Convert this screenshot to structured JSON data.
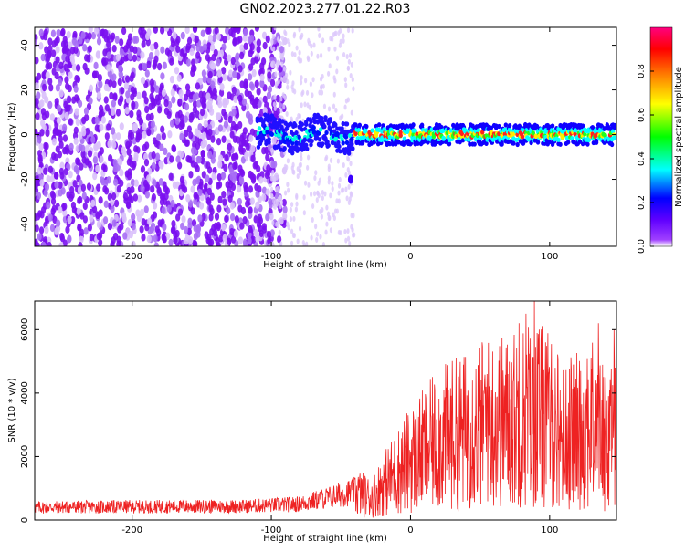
{
  "title": "GN02.2023.277.01.22.R03",
  "chart_data": [
    {
      "type": "heatmap",
      "xlabel": "Height of straight line (km)",
      "ylabel": "Frequency (Hz)",
      "xlim": [
        -270,
        148
      ],
      "ylim": [
        -50,
        48
      ],
      "xticks": [
        -200,
        -100,
        0,
        100
      ],
      "yticks": [
        -40,
        -20,
        0,
        20,
        40
      ],
      "colorbar": {
        "label": "Normalized spectral amplitude",
        "range": [
          0,
          1
        ],
        "ticks": [
          0.0,
          0.2,
          0.4,
          0.6,
          0.8
        ],
        "colormap": [
          "#ffffff",
          "#8000ff",
          "#0000ff",
          "#00ffff",
          "#00ff00",
          "#ffff00",
          "#ff8000",
          "#ff0000",
          "#ff0080"
        ]
      },
      "description_regions": [
        {
          "x": [
            -270,
            -100
          ],
          "y": [
            -50,
            48
          ],
          "amplitude": 0.05
        },
        {
          "x": [
            -100,
            -40
          ],
          "freq_center": 0,
          "amplitude": 0.25
        },
        {
          "x": [
            -40,
            148
          ],
          "freq_center": 0,
          "amplitude": 0.55
        }
      ]
    },
    {
      "type": "line",
      "xlabel": "Height of straight line (km)",
      "ylabel": "SNR (10 * v/v)",
      "xlim": [
        -270,
        148
      ],
      "ylim": [
        0,
        6900
      ],
      "xticks": [
        -200,
        -100,
        0,
        100
      ],
      "yticks": [
        0,
        2000,
        4000,
        6000
      ],
      "line_color": "#ee2222",
      "envelope_points": [
        {
          "x": -270,
          "y": 400
        },
        {
          "x": -200,
          "y": 420
        },
        {
          "x": -120,
          "y": 430
        },
        {
          "x": -80,
          "y": 500
        },
        {
          "x": -60,
          "y": 700
        },
        {
          "x": -40,
          "y": 900
        },
        {
          "x": -28,
          "y": 700
        },
        {
          "x": -20,
          "y": 1100
        },
        {
          "x": -10,
          "y": 1500
        },
        {
          "x": 0,
          "y": 1900
        },
        {
          "x": 10,
          "y": 2200
        },
        {
          "x": 20,
          "y": 2500
        },
        {
          "x": 30,
          "y": 2700
        },
        {
          "x": 40,
          "y": 2800
        },
        {
          "x": 50,
          "y": 3000
        },
        {
          "x": 60,
          "y": 3100
        },
        {
          "x": 70,
          "y": 3100
        },
        {
          "x": 80,
          "y": 3300
        },
        {
          "x": 90,
          "y": 3400
        },
        {
          "x": 100,
          "y": 3100
        },
        {
          "x": 110,
          "y": 2700
        },
        {
          "x": 120,
          "y": 2800
        },
        {
          "x": 130,
          "y": 3000
        },
        {
          "x": 140,
          "y": 2600
        },
        {
          "x": 148,
          "y": 3500
        }
      ],
      "peaks": [
        {
          "x": 42,
          "y": 5200
        },
        {
          "x": 55,
          "y": 4600
        },
        {
          "x": 78,
          "y": 6200
        },
        {
          "x": 83,
          "y": 6500
        },
        {
          "x": 89,
          "y": 6900
        },
        {
          "x": 97,
          "y": 5600
        },
        {
          "x": 117,
          "y": 4900
        },
        {
          "x": 127,
          "y": 5100
        },
        {
          "x": 135,
          "y": 6200
        },
        {
          "x": 147,
          "y": 4800
        }
      ]
    }
  ]
}
